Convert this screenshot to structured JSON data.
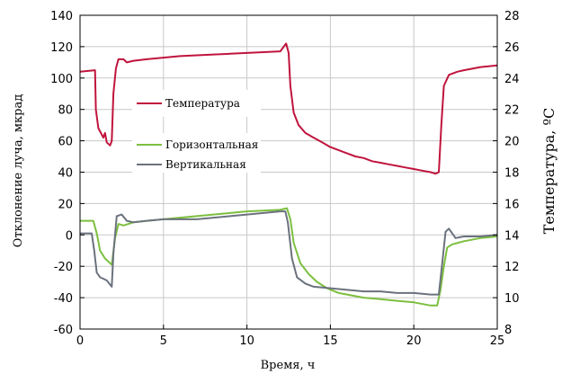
{
  "chart_data": {
    "type": "line",
    "xlabel": "Время, ч",
    "ylabel_left": "Отклонение луча, мкрад",
    "ylabel_right": "Температура, ºC",
    "xlim": [
      0,
      25
    ],
    "ylim_left": [
      -60,
      140
    ],
    "ylim_right": [
      8,
      28
    ],
    "x_ticks": [
      "0",
      "5",
      "10",
      "15",
      "20",
      "25"
    ],
    "y_left_ticks": [
      "-60",
      "-40",
      "-20",
      "0",
      "20",
      "40",
      "60",
      "80",
      "100",
      "120",
      "140"
    ],
    "y_right_ticks": [
      "8",
      "10",
      "12",
      "14",
      "16",
      "18",
      "20",
      "22",
      "24",
      "26",
      "28"
    ],
    "grid": true,
    "legend_position": "upper-left",
    "legend": [
      "Температура",
      "Горизонтальная",
      "Вертикальная"
    ],
    "colors": {
      "temperature": "#c0143c",
      "horizontal": "#7cbf3f",
      "vertical": "#6b727d",
      "grid": "#c8c8c8"
    },
    "series": [
      {
        "name": "Температура",
        "axis": "right",
        "points": [
          [
            0,
            24.4
          ],
          [
            0.9,
            24.5
          ],
          [
            0.95,
            22.0
          ],
          [
            1.1,
            20.8
          ],
          [
            1.4,
            20.2
          ],
          [
            1.5,
            20.5
          ],
          [
            1.6,
            19.9
          ],
          [
            1.8,
            19.7
          ],
          [
            1.9,
            20.0
          ],
          [
            2.0,
            23.0
          ],
          [
            2.15,
            24.6
          ],
          [
            2.3,
            25.2
          ],
          [
            2.6,
            25.2
          ],
          [
            2.8,
            25.0
          ],
          [
            3.2,
            25.1
          ],
          [
            4,
            25.2
          ],
          [
            5,
            25.3
          ],
          [
            6,
            25.4
          ],
          [
            7,
            25.45
          ],
          [
            8,
            25.5
          ],
          [
            9,
            25.55
          ],
          [
            10,
            25.6
          ],
          [
            11,
            25.65
          ],
          [
            12,
            25.7
          ],
          [
            12.35,
            26.2
          ],
          [
            12.5,
            25.6
          ],
          [
            12.6,
            23.5
          ],
          [
            12.8,
            21.8
          ],
          [
            13.1,
            21.0
          ],
          [
            13.5,
            20.5
          ],
          [
            14,
            20.2
          ],
          [
            14.5,
            19.9
          ],
          [
            15,
            19.6
          ],
          [
            15.5,
            19.4
          ],
          [
            16,
            19.2
          ],
          [
            16.5,
            19.0
          ],
          [
            17,
            18.9
          ],
          [
            17.5,
            18.7
          ],
          [
            18,
            18.6
          ],
          [
            18.5,
            18.5
          ],
          [
            19,
            18.4
          ],
          [
            19.5,
            18.3
          ],
          [
            20,
            18.2
          ],
          [
            20.5,
            18.1
          ],
          [
            21,
            18.0
          ],
          [
            21.3,
            17.9
          ],
          [
            21.5,
            18.0
          ],
          [
            21.65,
            21.0
          ],
          [
            21.8,
            23.5
          ],
          [
            22.1,
            24.2
          ],
          [
            22.6,
            24.4
          ],
          [
            23,
            24.5
          ],
          [
            24,
            24.7
          ],
          [
            25,
            24.8
          ]
        ]
      },
      {
        "name": "Горизонтальная",
        "axis": "left",
        "points": [
          [
            0,
            9
          ],
          [
            0.8,
            9
          ],
          [
            1.0,
            1
          ],
          [
            1.2,
            -10
          ],
          [
            1.5,
            -15
          ],
          [
            1.9,
            -19
          ],
          [
            2.1,
            -2
          ],
          [
            2.3,
            7
          ],
          [
            2.6,
            6
          ],
          [
            3.2,
            8
          ],
          [
            4,
            9
          ],
          [
            5,
            10
          ],
          [
            6,
            11
          ],
          [
            7,
            12
          ],
          [
            8,
            13
          ],
          [
            9,
            14
          ],
          [
            10,
            15
          ],
          [
            11,
            15.5
          ],
          [
            12,
            16
          ],
          [
            12.4,
            17
          ],
          [
            12.6,
            10
          ],
          [
            12.8,
            -5
          ],
          [
            13.2,
            -18
          ],
          [
            13.7,
            -25
          ],
          [
            14.2,
            -30
          ],
          [
            14.8,
            -34
          ],
          [
            15.5,
            -37
          ],
          [
            16,
            -38
          ],
          [
            17,
            -40
          ],
          [
            18,
            -41
          ],
          [
            19,
            -42
          ],
          [
            20,
            -43
          ],
          [
            21,
            -45
          ],
          [
            21.4,
            -45
          ],
          [
            21.6,
            -35
          ],
          [
            21.8,
            -20
          ],
          [
            22.0,
            -8
          ],
          [
            22.3,
            -6
          ],
          [
            23,
            -4
          ],
          [
            24,
            -2
          ],
          [
            25,
            -1
          ]
        ]
      },
      {
        "name": "Вертикальная",
        "axis": "left",
        "points": [
          [
            0,
            1
          ],
          [
            0.7,
            1
          ],
          [
            0.85,
            -10
          ],
          [
            1.0,
            -24
          ],
          [
            1.2,
            -27
          ],
          [
            1.6,
            -29
          ],
          [
            1.9,
            -33
          ],
          [
            2.0,
            -12
          ],
          [
            2.2,
            12
          ],
          [
            2.5,
            13
          ],
          [
            2.8,
            9
          ],
          [
            3.2,
            8
          ],
          [
            4,
            9
          ],
          [
            5,
            10
          ],
          [
            6,
            10
          ],
          [
            7,
            10
          ],
          [
            8,
            11
          ],
          [
            9,
            12
          ],
          [
            10,
            13
          ],
          [
            11,
            14
          ],
          [
            12,
            15
          ],
          [
            12.3,
            15
          ],
          [
            12.45,
            8
          ],
          [
            12.7,
            -15
          ],
          [
            13.0,
            -27
          ],
          [
            13.5,
            -31
          ],
          [
            14,
            -33
          ],
          [
            15,
            -34
          ],
          [
            16,
            -35
          ],
          [
            17,
            -36
          ],
          [
            18,
            -36
          ],
          [
            19,
            -37
          ],
          [
            20,
            -37
          ],
          [
            21,
            -38
          ],
          [
            21.5,
            -38
          ],
          [
            21.7,
            -18
          ],
          [
            21.9,
            2
          ],
          [
            22.1,
            4
          ],
          [
            22.5,
            -2
          ],
          [
            23,
            -1
          ],
          [
            24,
            -1
          ],
          [
            25,
            0
          ]
        ]
      }
    ]
  }
}
